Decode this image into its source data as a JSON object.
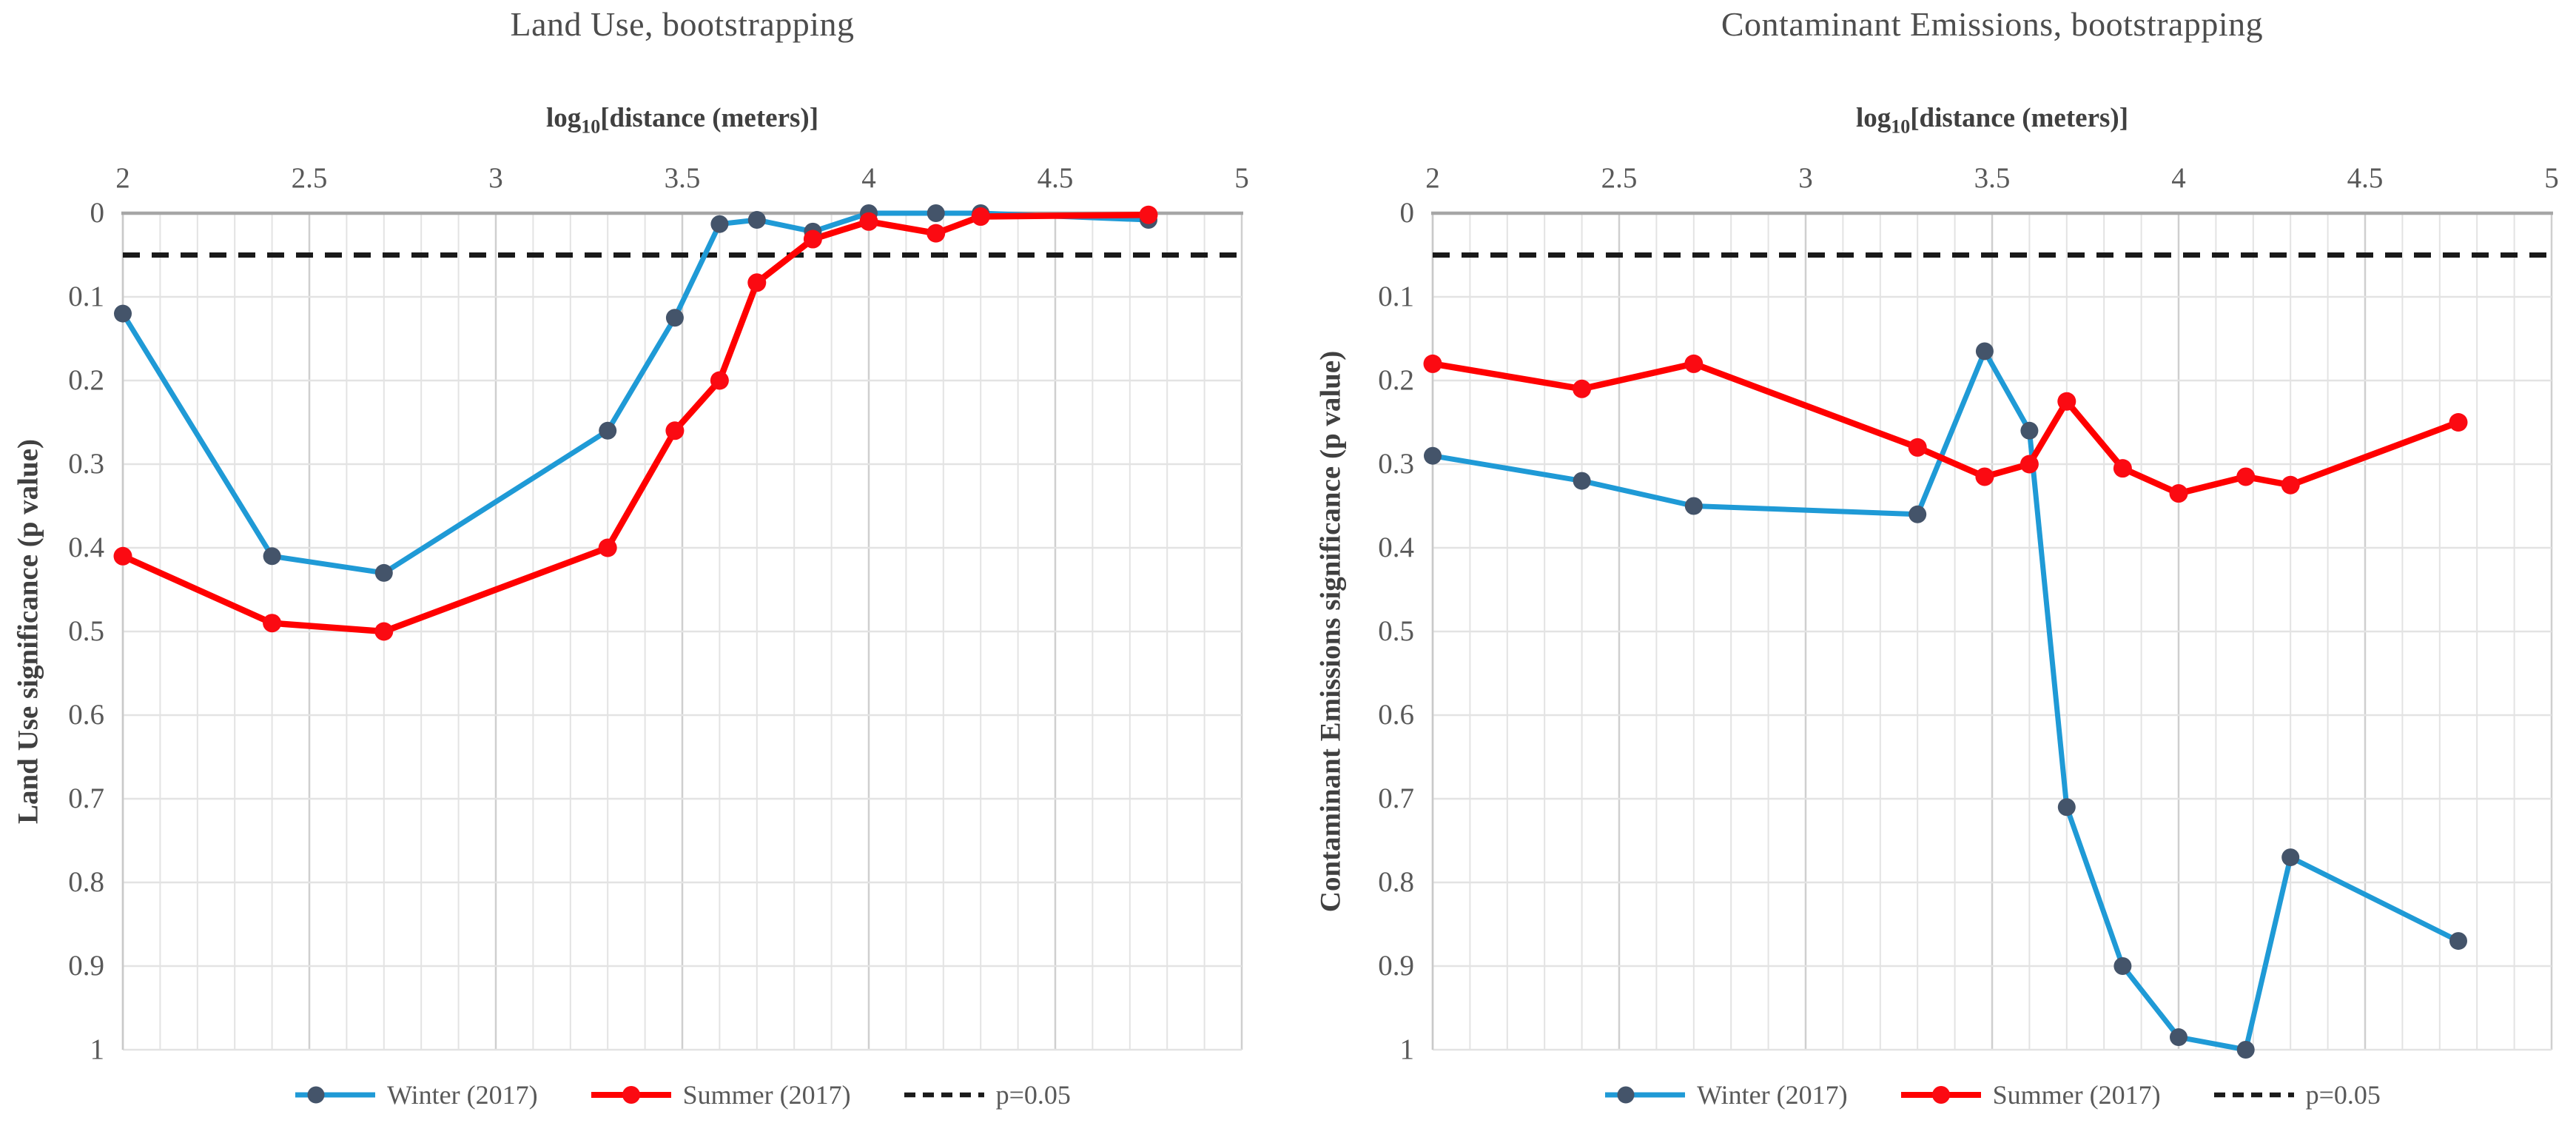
{
  "figure": {
    "background": "#ffffff"
  },
  "charts": [
    {
      "title": "Land Use, bootstrapping",
      "xlabel_prefix": "log",
      "xlabel_sub": "10",
      "xlabel_suffix": "[distance (meters)]",
      "ylabel": "Land Use significance (p value)",
      "x_ticks": [
        "2",
        "2.5",
        "3",
        "3.5",
        "4",
        "4.5",
        "5"
      ],
      "y_ticks": [
        "0",
        "0.1",
        "0.2",
        "0.3",
        "0.4",
        "0.5",
        "0.6",
        "0.7",
        "0.8",
        "0.9",
        "1"
      ],
      "legend": [
        {
          "key": "winter",
          "label": "Winter (2017)"
        },
        {
          "key": "summer",
          "label": "Summer (2017)"
        },
        {
          "key": "reference",
          "label": "p=0.05"
        }
      ]
    },
    {
      "title": "Contaminant Emissions, bootstrapping",
      "xlabel_prefix": "log",
      "xlabel_sub": "10",
      "xlabel_suffix": "[distance (meters)]",
      "ylabel": "Contaminant Emissions significance (p value)",
      "x_ticks": [
        "2",
        "2.5",
        "3",
        "3.5",
        "4",
        "4.5",
        "5"
      ],
      "y_ticks": [
        "0",
        "0.1",
        "0.2",
        "0.3",
        "0.4",
        "0.5",
        "0.6",
        "0.7",
        "0.8",
        "0.9",
        "1"
      ],
      "legend": [
        {
          "key": "winter",
          "label": "Winter (2017)"
        },
        {
          "key": "summer",
          "label": "Summer (2017)"
        },
        {
          "key": "reference",
          "label": "p=0.05"
        }
      ]
    }
  ],
  "chart_data": [
    {
      "type": "line",
      "title": "Land Use, bootstrapping",
      "xlabel": "log10[distance (meters)]",
      "ylabel": "Land Use significance (p value)",
      "xlim": [
        2,
        5
      ],
      "ylim": [
        0,
        1
      ],
      "y_axis_inverted": true,
      "grid": true,
      "legend_position": "bottom",
      "x": [
        2.0,
        2.4,
        2.7,
        3.3,
        3.48,
        3.6,
        3.7,
        3.85,
        4.0,
        4.18,
        4.3,
        4.75
      ],
      "series": [
        {
          "name": "Winter (2017)",
          "values": [
            0.12,
            0.41,
            0.43,
            0.26,
            0.125,
            0.013,
            0.008,
            0.022,
            0.0,
            0.0,
            0.0,
            0.008
          ]
        },
        {
          "name": "Summer (2017)",
          "values": [
            0.41,
            0.49,
            0.5,
            0.4,
            0.26,
            0.2,
            0.083,
            0.031,
            0.01,
            0.024,
            0.004,
            0.002
          ]
        }
      ],
      "reference_line": {
        "name": "p=0.05",
        "value": 0.05
      }
    },
    {
      "type": "line",
      "title": "Contaminant Emissions, bootstrapping",
      "xlabel": "log10[distance (meters)]",
      "ylabel": "Contaminant Emissions significance (p value)",
      "xlim": [
        2,
        5
      ],
      "ylim": [
        0,
        1
      ],
      "y_axis_inverted": true,
      "grid": true,
      "legend_position": "bottom",
      "x": [
        2.0,
        2.4,
        2.7,
        3.3,
        3.48,
        3.6,
        3.7,
        3.85,
        4.0,
        4.18,
        4.3,
        4.75
      ],
      "series": [
        {
          "name": "Winter (2017)",
          "values": [
            0.29,
            0.32,
            0.35,
            0.36,
            0.165,
            0.26,
            0.71,
            0.9,
            0.985,
            1.0,
            0.77,
            0.87
          ]
        },
        {
          "name": "Summer (2017)",
          "values": [
            0.18,
            0.21,
            0.18,
            0.28,
            0.315,
            0.3,
            0.225,
            0.305,
            0.335,
            0.315,
            0.325,
            0.25
          ]
        }
      ],
      "reference_line": {
        "name": "p=0.05",
        "value": 0.05
      }
    }
  ],
  "colors": {
    "winter_line": "#1F9AD6",
    "winter_marker": "#44546A",
    "summer_line": "#FF0000",
    "summer_marker": "#FB0A12",
    "reference_line": "#1A1A1A",
    "grid_minor": "#E3E3E3",
    "grid_major": "#CFCFCF",
    "axis_top": "#A6A6A6",
    "axis_side": "#C9C9C9",
    "text_gray": "#595959"
  }
}
